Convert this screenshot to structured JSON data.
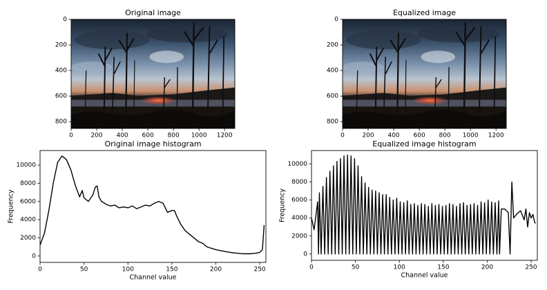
{
  "chart_data": [
    {
      "type": "image",
      "title": "Original image",
      "xlim": [
        0,
        1280
      ],
      "ylim": [
        853,
        0
      ],
      "xticks": [
        0,
        200,
        400,
        600,
        800,
        1000,
        1200
      ],
      "yticks": [
        0,
        200,
        400,
        600,
        800
      ]
    },
    {
      "type": "image",
      "title": "Equalized image",
      "xlim": [
        0,
        1280
      ],
      "ylim": [
        853,
        0
      ],
      "xticks": [
        0,
        200,
        400,
        600,
        800,
        1000,
        1200
      ],
      "yticks": [
        0,
        200,
        400,
        600,
        800
      ]
    },
    {
      "type": "line",
      "title": "Original image histogram",
      "xlabel": "Channel value",
      "ylabel": "Frequency",
      "color": "#000000",
      "xlim": [
        0,
        257
      ],
      "ylim": [
        -700,
        11600
      ],
      "xticks": [
        0,
        50,
        100,
        150,
        200,
        250
      ],
      "yticks": [
        0,
        2000,
        4000,
        6000,
        8000,
        10000
      ],
      "x": [
        0,
        5,
        10,
        15,
        20,
        25,
        30,
        35,
        40,
        45,
        48,
        50,
        55,
        60,
        63,
        65,
        67,
        70,
        75,
        80,
        85,
        90,
        95,
        100,
        105,
        110,
        115,
        120,
        125,
        130,
        135,
        140,
        145,
        150,
        153,
        155,
        160,
        165,
        170,
        175,
        180,
        185,
        190,
        200,
        210,
        220,
        230,
        240,
        245,
        250,
        253,
        255
      ],
      "values": [
        1200,
        2500,
        5000,
        8000,
        10300,
        11000,
        10600,
        9500,
        7800,
        6500,
        7200,
        6400,
        6000,
        6700,
        7600,
        7700,
        6500,
        6000,
        5700,
        5500,
        5600,
        5300,
        5400,
        5300,
        5500,
        5200,
        5400,
        5600,
        5500,
        5800,
        6000,
        5800,
        4800,
        5000,
        5000,
        4500,
        3500,
        2800,
        2400,
        2000,
        1600,
        1400,
        1000,
        700,
        500,
        350,
        250,
        250,
        300,
        400,
        700,
        3400
      ]
    },
    {
      "type": "line",
      "title": "Equalized image histogram",
      "xlabel": "Channel value",
      "ylabel": "Frequency",
      "color": "#000000",
      "xlim": [
        0,
        257
      ],
      "ylim": [
        -700,
        11500
      ],
      "xticks": [
        0,
        50,
        100,
        150,
        200,
        250
      ],
      "yticks": [
        0,
        2000,
        4000,
        6000,
        8000,
        10000
      ],
      "x": [
        0,
        3,
        7,
        8,
        9,
        11,
        13,
        15,
        17,
        19,
        21,
        23,
        25,
        27,
        29,
        31,
        33,
        35,
        37,
        39,
        41,
        43,
        45,
        47,
        49,
        51,
        53,
        55,
        57,
        59,
        61,
        63,
        65,
        67,
        69,
        71,
        73,
        75,
        77,
        79,
        81,
        83,
        85,
        87,
        89,
        91,
        93,
        95,
        97,
        99,
        101,
        103,
        105,
        107,
        109,
        111,
        113,
        115,
        117,
        119,
        121,
        123,
        125,
        127,
        129,
        131,
        133,
        135,
        137,
        139,
        141,
        143,
        145,
        147,
        149,
        151,
        153,
        155,
        157,
        159,
        161,
        163,
        165,
        167,
        169,
        171,
        173,
        175,
        177,
        179,
        181,
        183,
        185,
        187,
        189,
        191,
        193,
        195,
        197,
        199,
        201,
        203,
        205,
        207,
        209,
        211,
        213,
        214,
        216,
        220,
        224,
        226,
        228,
        230,
        234,
        238,
        242,
        244,
        246,
        248,
        250,
        252,
        254,
        255
      ],
      "values": [
        4000,
        2700,
        5800,
        0,
        6800,
        0,
        7500,
        0,
        8500,
        0,
        9200,
        0,
        9800,
        0,
        10300,
        0,
        10600,
        0,
        10900,
        0,
        11000,
        0,
        10900,
        0,
        10600,
        0,
        9800,
        0,
        8600,
        0,
        7900,
        0,
        7400,
        0,
        7100,
        0,
        7000,
        0,
        6800,
        0,
        6600,
        0,
        6600,
        0,
        6300,
        0,
        6000,
        0,
        6200,
        0,
        5800,
        0,
        5700,
        0,
        5900,
        0,
        5500,
        0,
        5600,
        0,
        5400,
        0,
        5600,
        0,
        5500,
        0,
        5300,
        0,
        5600,
        0,
        5400,
        0,
        5500,
        0,
        5300,
        0,
        5400,
        0,
        5600,
        0,
        5500,
        0,
        5300,
        0,
        5600,
        0,
        5700,
        0,
        5400,
        0,
        5500,
        0,
        5600,
        0,
        5400,
        0,
        5800,
        0,
        5700,
        0,
        6000,
        0,
        5800,
        0,
        5700,
        0,
        5900,
        0,
        5000,
        5000,
        4600,
        0,
        8000,
        4000,
        4500,
        4800,
        3800,
        5000,
        3000,
        4600,
        4000,
        4400,
        3500,
        3400
      ]
    }
  ]
}
